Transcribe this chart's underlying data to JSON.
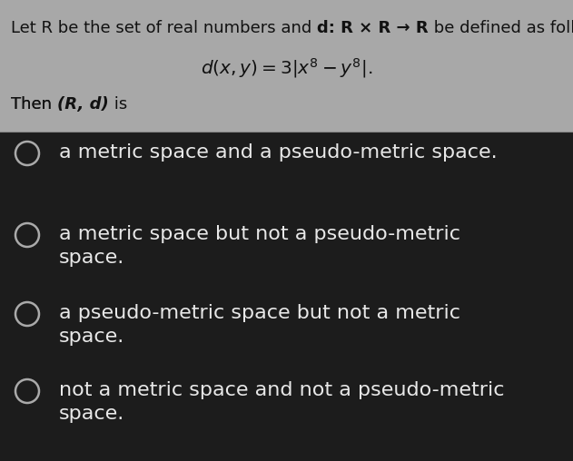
{
  "bg_color": "#1c1c1c",
  "header_bg": "#a8a8a8",
  "header_text_color": "#111111",
  "answer_text_color": "#e8e8e8",
  "options": [
    "a metric space and a pseudo-metric space.",
    "a metric space but not a pseudo-metric\nspace.",
    "a pseudo-metric space but not a metric\nspace.",
    "not a metric space and not a pseudo-metric\nspace."
  ],
  "circle_color": "#aaaaaa",
  "option_fontsize": 16,
  "header_fontsize": 13
}
